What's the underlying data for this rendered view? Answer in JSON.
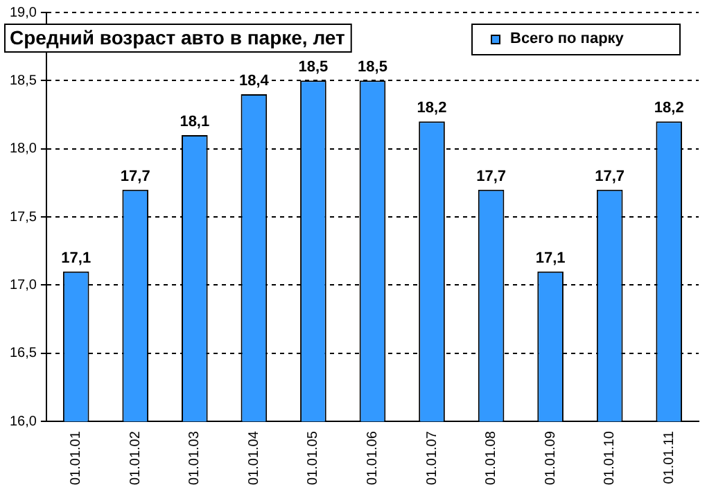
{
  "chart_data": {
    "type": "bar",
    "title": "Средний возраст авто в парке, лет",
    "categories": [
      "01.01.01",
      "01.01.02",
      "01.01.03",
      "01.01.04",
      "01.01.05",
      "01.01.06",
      "01.01.07",
      "01.01.08",
      "01.01.09",
      "01.01.10",
      "01.01.11"
    ],
    "series": [
      {
        "name": "Всего по парку",
        "color": "#3399ff",
        "values": [
          17.1,
          17.7,
          18.1,
          18.4,
          18.5,
          18.5,
          18.2,
          17.7,
          17.1,
          17.7,
          18.2
        ],
        "value_labels": [
          "17,1",
          "17,7",
          "18,1",
          "18,4",
          "18,5",
          "18,5",
          "18,2",
          "17,7",
          "17,1",
          "17,7",
          "18,2"
        ]
      }
    ],
    "ylim": [
      16,
      19
    ],
    "yticks": [
      {
        "value": 16,
        "label": "16,0"
      },
      {
        "value": 16.5,
        "label": "16,5"
      },
      {
        "value": 17,
        "label": "17,0"
      },
      {
        "value": 17.5,
        "label": "17,5"
      },
      {
        "value": 18,
        "label": "18,0"
      },
      {
        "value": 18.5,
        "label": "18,5"
      },
      {
        "value": 19,
        "label": "19,0"
      }
    ],
    "grid": "y",
    "legend": "top right"
  }
}
